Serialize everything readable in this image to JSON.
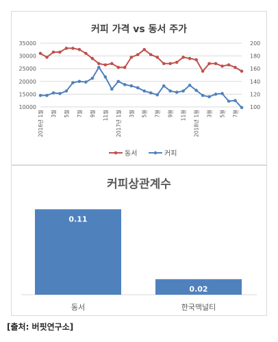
{
  "line_chart_title": "커피 가격 vs 동서 주가",
  "bar_chart_title": "커피상관계수",
  "source_note": "[출처: 버핏연구소]",
  "colors": {
    "dongsuh": "#c0504d",
    "coffee": "#4f81bd",
    "bar": "#4f81bd",
    "grid": "#d9d9d9"
  },
  "chart_data": [
    {
      "type": "line",
      "title": "커피 가격 vs 동서 주가",
      "x": [
        "2016년 1월",
        "2016년 2월",
        "2016년 3월",
        "2016년 4월",
        "2016년 5월",
        "2016년 6월",
        "2016년 7월",
        "2016년 8월",
        "2016년 9월",
        "2016년 10월",
        "2016년 11월",
        "2016년 12월",
        "2017년 1월",
        "2017년 2월",
        "2017년 3월",
        "2017년 4월",
        "2017년 5월",
        "2017년 6월",
        "2017년 7월",
        "2017년 8월",
        "2017년 9월",
        "2017년 10월",
        "2017년 11월",
        "2017년 12월",
        "2018년 1월",
        "2018년 2월",
        "2018년 3월",
        "2018년 4월",
        "2018년 5월",
        "2018년 6월",
        "2018년 7월",
        "2018년 8월"
      ],
      "x_tick_labels": [
        "2016년 1월",
        "3월",
        "5월",
        "7월",
        "9월",
        "11월",
        "2017년 1월",
        "3월",
        "5월",
        "7월",
        "9월",
        "11월",
        "2018년 1월",
        "3월",
        "5월",
        "7월"
      ],
      "series": [
        {
          "name": "동서",
          "axis": "left",
          "values": [
            31000,
            29500,
            31500,
            31500,
            33000,
            33000,
            32500,
            31000,
            29000,
            27000,
            26500,
            27000,
            25500,
            25500,
            29500,
            30500,
            32500,
            30500,
            29500,
            27000,
            27000,
            27500,
            29500,
            29000,
            28500,
            24000,
            27000,
            27000,
            26000,
            26500,
            25500,
            24000
          ]
        },
        {
          "name": "커피",
          "axis": "right",
          "values": [
            118,
            118,
            122,
            121,
            125,
            138,
            140,
            139,
            145,
            162,
            147,
            128,
            140,
            135,
            133,
            130,
            125,
            122,
            119,
            133,
            125,
            123,
            125,
            134,
            126,
            118,
            116,
            120,
            121,
            109,
            110,
            99
          ]
        }
      ],
      "y_left": {
        "ylim": [
          10000,
          35000
        ],
        "ticks": [
          "10000",
          "15000",
          "20000",
          "25000",
          "30000",
          "35000"
        ]
      },
      "y_right": {
        "ylim": [
          100,
          200
        ],
        "ticks": [
          "100",
          "120",
          "140",
          "160",
          "180",
          "200"
        ]
      },
      "grid": true,
      "legend": "bottom"
    },
    {
      "type": "bar",
      "title": "커피상관계수",
      "categories": [
        "동서",
        "한국맥널티"
      ],
      "values": [
        0.11,
        0.02
      ],
      "data_labels": [
        "0.11",
        "0.02"
      ],
      "ylim": [
        0,
        0.12
      ],
      "grid": false,
      "legend": "none"
    }
  ]
}
